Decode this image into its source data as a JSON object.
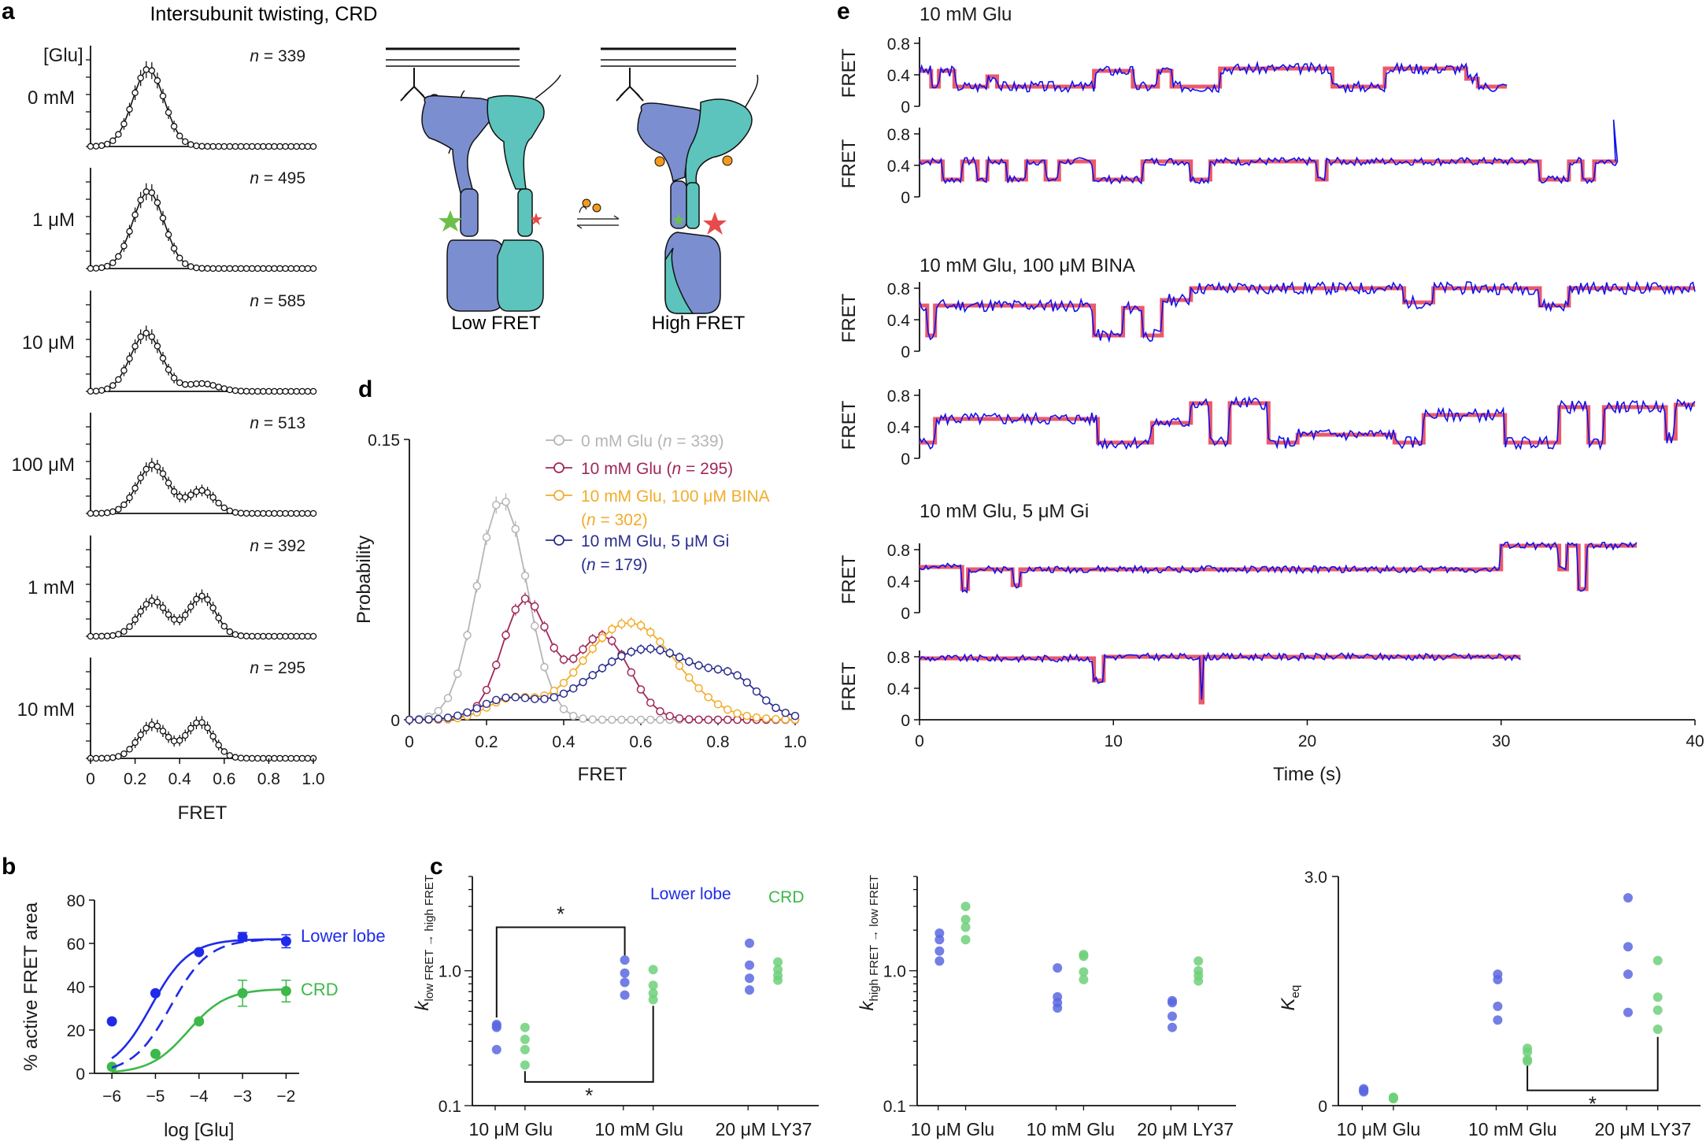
{
  "panels": {
    "a": "a",
    "b": "b",
    "c": "c",
    "d": "d",
    "e": "e"
  },
  "colors": {
    "black": "#111111",
    "blue": "#1f2be8",
    "green": "#3db84a",
    "gray": "#b5b5b5",
    "maroon": "#a0285a",
    "orange": "#f2ac2a",
    "navy": "#2b2f8c",
    "red": "#e8485c",
    "trace_blue": "#1010ee",
    "lobe_blue": "#7b8fd0",
    "lobe_teal": "#5cc4bc",
    "star_green": "#6cc04a",
    "star_red": "#e64a4a",
    "ligand": "#f39a1e"
  },
  "panel_a_title": "Intersubunit twisting, CRD",
  "schematic": {
    "low_label": "Low FRET",
    "high_label": "High FRET"
  },
  "chart_data": [
    {
      "id": "a",
      "type": "histogram-stack",
      "glu_header": "[Glu]",
      "xlabel": "FRET",
      "xticks": [
        "0",
        "0.2",
        "0.4",
        "0.6",
        "0.8",
        "1.0"
      ],
      "xlim": [
        0,
        1
      ],
      "ymax": 0.14,
      "rows": [
        {
          "label": "0 mM",
          "n_prefix": "n",
          "n_value": "= 339",
          "peaks": [
            [
              0.26,
              0.12,
              0.07
            ]
          ]
        },
        {
          "label": "1 μM",
          "n_prefix": "n",
          "n_value": "= 495",
          "peaks": [
            [
              0.26,
              0.12,
              0.07
            ]
          ]
        },
        {
          "label": "10 μM",
          "n_prefix": "n",
          "n_value": "= 585",
          "peaks": [
            [
              0.25,
              0.09,
              0.07
            ],
            [
              0.5,
              0.012,
              0.07
            ]
          ]
        },
        {
          "label": "100 μM",
          "n_prefix": "n",
          "n_value": "= 513",
          "peaks": [
            [
              0.28,
              0.075,
              0.07
            ],
            [
              0.5,
              0.035,
              0.06
            ]
          ]
        },
        {
          "label": "1 mM",
          "n_prefix": "n",
          "n_value": "= 392",
          "peaks": [
            [
              0.28,
              0.055,
              0.065
            ],
            [
              0.5,
              0.062,
              0.06
            ]
          ]
        },
        {
          "label": "10 mM",
          "n_prefix": "n",
          "n_value": "= 295",
          "peaks": [
            [
              0.28,
              0.052,
              0.065
            ],
            [
              0.49,
              0.056,
              0.06
            ]
          ]
        }
      ]
    },
    {
      "id": "b",
      "type": "line",
      "xlabel": "log [Glu]",
      "ylabel": "% active FRET area",
      "xticks": [
        "−6",
        "−5",
        "−4",
        "−3",
        "−2"
      ],
      "x": [
        -6,
        -5,
        -4,
        -3,
        -2
      ],
      "xlim": [
        -6.4,
        -1.7
      ],
      "yticks": [
        "0",
        "20",
        "40",
        "60",
        "80"
      ],
      "ylim": [
        0,
        80
      ],
      "series": [
        {
          "name": "Lower lobe",
          "color_key": "blue",
          "values": [
            24,
            37,
            56,
            63,
            61
          ],
          "err": [
            0,
            0,
            0,
            2,
            3
          ],
          "ec50": -5.1,
          "top": 62
        },
        {
          "name": "CRD",
          "color_key": "green",
          "values": [
            3,
            9,
            24,
            37,
            38
          ],
          "err": [
            0,
            0,
            0,
            6,
            5
          ],
          "ec50": -4.25,
          "top": 39
        },
        {
          "name": "dashed",
          "color_key": "blue",
          "dashed": true,
          "ec50": -4.65,
          "top": 62
        }
      ]
    },
    {
      "id": "d",
      "type": "line",
      "xlabel": "FRET",
      "ylabel": "Probability",
      "xticks": [
        "0",
        "0.2",
        "0.4",
        "0.6",
        "0.8",
        "1.0"
      ],
      "xlim": [
        0,
        1.0
      ],
      "yticks": [
        "0",
        "0.15"
      ],
      "ylim": [
        0,
        0.15
      ],
      "series": [
        {
          "name": "0 mM Glu (",
          "n_value": "= 339)",
          "color_key": "gray",
          "peaks": [
            [
              0.24,
              0.118,
              0.065
            ]
          ],
          "xmax": 1.0
        },
        {
          "name": "10 mM Glu (",
          "n_value": "= 295)",
          "color_key": "maroon",
          "peaks": [
            [
              0.3,
              0.064,
              0.06
            ],
            [
              0.5,
              0.045,
              0.07
            ]
          ],
          "xmax": 1.0
        },
        {
          "name": "10 mM Glu, 100 μM BINA",
          "name2_open": "(",
          "n_value": "= 302)",
          "color_key": "orange",
          "peaks": [
            [
              0.26,
              0.01,
              0.06
            ],
            [
              0.57,
              0.052,
              0.12
            ]
          ],
          "xmax": 1.0
        },
        {
          "name": "10 mM Glu, 5 μM Gi",
          "name2_open": "(",
          "n_value": "= 179)",
          "color_key": "navy",
          "peaks": [
            [
              0.25,
              0.01,
              0.07
            ],
            [
              0.62,
              0.038,
              0.15
            ],
            [
              0.85,
              0.012,
              0.06
            ]
          ],
          "xmax": 1.0
        }
      ]
    },
    {
      "id": "c",
      "type": "scatter",
      "group_labels": [
        "10 μM Glu",
        "10 mM Glu",
        "20 μM LY37"
      ],
      "legend": {
        "lower": "Lower lobe",
        "crd": "CRD"
      },
      "subpanels": [
        {
          "ylabel_main": "k",
          "ylabel_sub": "low FRET → high FRET",
          "yscale": "log",
          "ylim": [
            0.1,
            5
          ],
          "yticks": [
            "0.1",
            "1.0"
          ],
          "blue": [
            [
              0.39,
              0.4,
              0.38,
              0.26
            ],
            [
              1.2,
              0.96,
              0.82,
              0.66
            ],
            [
              1.6,
              1.1,
              0.88,
              0.72
            ]
          ],
          "green": [
            [
              0.38,
              0.31,
              0.26,
              0.2
            ],
            [
              1.02,
              0.78,
              0.68,
              0.61
            ],
            [
              1.16,
              1.02,
              0.92,
              0.85
            ]
          ],
          "sig": [
            "*",
            "*"
          ]
        },
        {
          "ylabel_main": "k",
          "ylabel_sub": "high FRET → low FRET",
          "yscale": "log",
          "ylim": [
            0.1,
            5
          ],
          "yticks": [
            "0.1",
            "1.0"
          ],
          "blue": [
            [
              1.9,
              1.7,
              1.4,
              1.18
            ],
            [
              1.05,
              0.64,
              0.58,
              0.53
            ],
            [
              0.6,
              0.58,
              0.46,
              0.38
            ]
          ],
          "green": [
            [
              3.0,
              2.4,
              2.1,
              1.7
            ],
            [
              1.32,
              1.28,
              0.98,
              0.86
            ],
            [
              1.18,
              1.0,
              0.92,
              0.84
            ]
          ],
          "sig": []
        },
        {
          "ylabel_main": "K",
          "ylabel_sub": "eq",
          "yscale": "linear",
          "ylim": [
            0,
            3.0
          ],
          "yticks": [
            "0",
            "3.0"
          ],
          "blue": [
            [
              0.22,
              0.2,
              0.18,
              0.2
            ],
            [
              1.72,
              1.65,
              1.3,
              1.12
            ],
            [
              2.72,
              2.08,
              1.72,
              1.22
            ]
          ],
          "green": [
            [
              0.11,
              0.1,
              0.1,
              0.09
            ],
            [
              0.75,
              0.7,
              0.6,
              0.58
            ],
            [
              1.9,
              1.42,
              1.25,
              1.0
            ]
          ],
          "sig": [
            "*"
          ]
        }
      ]
    },
    {
      "id": "e",
      "type": "line",
      "xlabel": "Time (s)",
      "ylabel": "FRET",
      "xticks": [
        "0",
        "10",
        "20",
        "30",
        "40"
      ],
      "xlim": [
        0,
        40
      ],
      "yticks": [
        "0",
        "0.4",
        "0.8"
      ],
      "ylim": [
        0,
        0.95
      ],
      "groups": [
        "10 mM Glu",
        "10 mM Glu, 100 μM BINA",
        "10 mM Glu, 5 μM Gi"
      ],
      "traces": [
        {
          "group": 0,
          "t_end": 30.3,
          "seed": 3,
          "noise": 0.07,
          "segments": [
            [
              0,
              0.45
            ],
            [
              0.6,
              0.25
            ],
            [
              1.0,
              0.45
            ],
            [
              1.8,
              0.25
            ],
            [
              3.5,
              0.38
            ],
            [
              4.0,
              0.25
            ],
            [
              9.0,
              0.45
            ],
            [
              11.0,
              0.25
            ],
            [
              12.3,
              0.45
            ],
            [
              13.0,
              0.25
            ],
            [
              15.5,
              0.48
            ],
            [
              21.3,
              0.25
            ],
            [
              24.0,
              0.48
            ],
            [
              28.2,
              0.35
            ],
            [
              28.8,
              0.25
            ],
            [
              30.3,
              0.25
            ]
          ]
        },
        {
          "group": 0,
          "t_end": 36.0,
          "seed": 7,
          "noise": 0.05,
          "spike": [
            35.8,
            0.98
          ],
          "segments": [
            [
              0,
              0.45
            ],
            [
              1.2,
              0.22
            ],
            [
              2.2,
              0.45
            ],
            [
              3.0,
              0.22
            ],
            [
              3.5,
              0.45
            ],
            [
              4.5,
              0.22
            ],
            [
              5.5,
              0.45
            ],
            [
              6.5,
              0.22
            ],
            [
              7.2,
              0.45
            ],
            [
              9.0,
              0.22
            ],
            [
              11.5,
              0.45
            ],
            [
              14.0,
              0.22
            ],
            [
              15.0,
              0.45
            ],
            [
              20.5,
              0.22
            ],
            [
              21.0,
              0.45
            ],
            [
              32.0,
              0.22
            ],
            [
              33.5,
              0.45
            ],
            [
              34.2,
              0.22
            ],
            [
              34.8,
              0.45
            ],
            [
              36.0,
              0.45
            ]
          ]
        },
        {
          "group": 1,
          "t_end": 40,
          "seed": 11,
          "noise": 0.08,
          "segments": [
            [
              0,
              0.58
            ],
            [
              0.4,
              0.2
            ],
            [
              0.8,
              0.58
            ],
            [
              9.0,
              0.2
            ],
            [
              10.5,
              0.55
            ],
            [
              11.5,
              0.2
            ],
            [
              12.5,
              0.65
            ],
            [
              14.0,
              0.8
            ],
            [
              25.0,
              0.62
            ],
            [
              26.5,
              0.8
            ],
            [
              32.0,
              0.58
            ],
            [
              33.5,
              0.8
            ],
            [
              40,
              0.8
            ]
          ]
        },
        {
          "group": 1,
          "t_end": 40,
          "seed": 5,
          "noise": 0.08,
          "segments": [
            [
              0,
              0.2
            ],
            [
              0.8,
              0.5
            ],
            [
              9.2,
              0.2
            ],
            [
              12.0,
              0.45
            ],
            [
              14.0,
              0.7
            ],
            [
              15.0,
              0.2
            ],
            [
              16.0,
              0.7
            ],
            [
              18.0,
              0.2
            ],
            [
              19.5,
              0.3
            ],
            [
              24.5,
              0.2
            ],
            [
              26.0,
              0.55
            ],
            [
              30.2,
              0.2
            ],
            [
              33.0,
              0.65
            ],
            [
              34.5,
              0.2
            ],
            [
              35.3,
              0.65
            ],
            [
              38.5,
              0.25
            ],
            [
              39.0,
              0.68
            ],
            [
              40,
              0.68
            ]
          ]
        },
        {
          "group": 2,
          "t_end": 37,
          "seed": 2,
          "noise": 0.045,
          "segments": [
            [
              0,
              0.58
            ],
            [
              2.2,
              0.3
            ],
            [
              2.5,
              0.55
            ],
            [
              4.8,
              0.35
            ],
            [
              5.2,
              0.55
            ],
            [
              30.0,
              0.85
            ],
            [
              33.0,
              0.55
            ],
            [
              33.4,
              0.85
            ],
            [
              34.0,
              0.3
            ],
            [
              34.4,
              0.85
            ],
            [
              37,
              0.85
            ]
          ]
        },
        {
          "group": 2,
          "t_end": 31,
          "seed": 9,
          "noise": 0.045,
          "segments": [
            [
              0,
              0.78
            ],
            [
              9.0,
              0.5
            ],
            [
              9.5,
              0.8
            ],
            [
              14.5,
              0.22
            ],
            [
              14.6,
              0.8
            ],
            [
              31,
              0.8
            ]
          ]
        }
      ]
    }
  ]
}
